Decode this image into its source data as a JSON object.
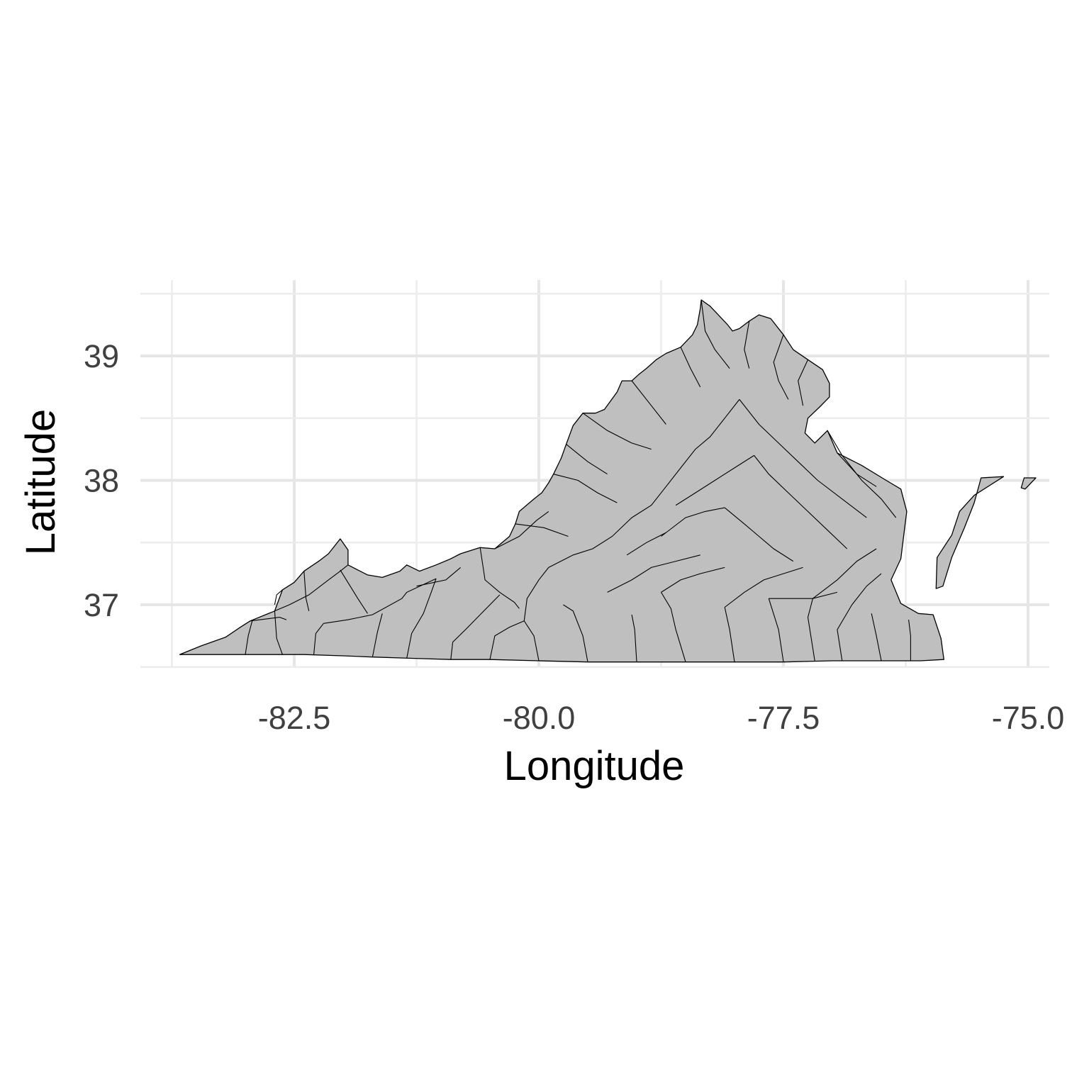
{
  "chart_data": {
    "type": "map",
    "region": "Virginia counties",
    "fill_color": "#bfbfbf",
    "border_color": "#000000",
    "background": "#ffffff",
    "grid": true,
    "xlabel": "Longitude",
    "ylabel": "Latitude",
    "x_ticks": [
      "-82.5",
      "-80.0",
      "-77.5",
      "-75.0"
    ],
    "y_ticks": [
      "37",
      "38",
      "39"
    ],
    "x_tick_values": [
      -82.5,
      -80.0,
      -77.5,
      -75.0
    ],
    "y_tick_values": [
      37,
      38,
      39
    ],
    "xlim": [
      -83.75,
      -74.9
    ],
    "ylim": [
      36.45,
      39.6
    ],
    "outline": [
      [
        -83.67,
        36.6
      ],
      [
        -83.45,
        36.67
      ],
      [
        -83.2,
        36.74
      ],
      [
        -83.05,
        36.82
      ],
      [
        -82.95,
        36.87
      ],
      [
        -82.7,
        36.95
      ],
      [
        -82.62,
        37.12
      ],
      [
        -82.5,
        37.18
      ],
      [
        -82.4,
        37.27
      ],
      [
        -82.25,
        37.35
      ],
      [
        -82.15,
        37.41
      ],
      [
        -82.03,
        37.53
      ],
      [
        -81.95,
        37.44
      ],
      [
        -81.95,
        37.32
      ],
      [
        -81.85,
        37.28
      ],
      [
        -81.75,
        37.24
      ],
      [
        -81.6,
        37.22
      ],
      [
        -81.42,
        37.27
      ],
      [
        -81.35,
        37.32
      ],
      [
        -81.22,
        37.27
      ],
      [
        -81.05,
        37.32
      ],
      [
        -80.9,
        37.37
      ],
      [
        -80.8,
        37.41
      ],
      [
        -80.6,
        37.46
      ],
      [
        -80.45,
        37.45
      ],
      [
        -80.3,
        37.55
      ],
      [
        -80.24,
        37.65
      ],
      [
        -80.2,
        37.75
      ],
      [
        -80.05,
        37.85
      ],
      [
        -79.97,
        37.9
      ],
      [
        -79.9,
        37.98
      ],
      [
        -79.85,
        38.05
      ],
      [
        -79.77,
        38.18
      ],
      [
        -79.72,
        38.29
      ],
      [
        -79.65,
        38.44
      ],
      [
        -79.55,
        38.54
      ],
      [
        -79.42,
        38.54
      ],
      [
        -79.33,
        38.57
      ],
      [
        -79.2,
        38.71
      ],
      [
        -79.15,
        38.8
      ],
      [
        -79.05,
        38.8
      ],
      [
        -78.98,
        38.85
      ],
      [
        -78.9,
        38.9
      ],
      [
        -78.8,
        38.97
      ],
      [
        -78.7,
        39.02
      ],
      [
        -78.55,
        39.07
      ],
      [
        -78.43,
        39.17
      ],
      [
        -78.38,
        39.25
      ],
      [
        -78.35,
        39.38
      ],
      [
        -78.34,
        39.45
      ],
      [
        -78.25,
        39.4
      ],
      [
        -78.07,
        39.25
      ],
      [
        -78.02,
        39.2
      ],
      [
        -77.95,
        39.22
      ],
      [
        -77.85,
        39.28
      ],
      [
        -77.75,
        39.33
      ],
      [
        -77.63,
        39.3
      ],
      [
        -77.5,
        39.17
      ],
      [
        -77.4,
        39.05
      ],
      [
        -77.25,
        38.97
      ],
      [
        -77.1,
        38.89
      ],
      [
        -77.03,
        38.78
      ],
      [
        -77.03,
        38.67
      ],
      [
        -77.13,
        38.59
      ],
      [
        -77.25,
        38.5
      ],
      [
        -77.28,
        38.38
      ],
      [
        -77.18,
        38.3
      ],
      [
        -77.05,
        38.4
      ],
      [
        -76.95,
        38.22
      ],
      [
        -76.7,
        38.12
      ],
      [
        -76.45,
        38.0
      ],
      [
        -76.3,
        37.93
      ],
      [
        -76.24,
        37.75
      ],
      [
        -76.28,
        37.5
      ],
      [
        -76.3,
        37.37
      ],
      [
        -76.4,
        37.2
      ],
      [
        -76.3,
        37.01
      ],
      [
        -76.12,
        36.93
      ],
      [
        -75.97,
        36.92
      ],
      [
        -75.89,
        36.73
      ],
      [
        -75.86,
        36.56
      ],
      [
        -76.1,
        36.55
      ],
      [
        -76.5,
        36.55
      ],
      [
        -77.0,
        36.55
      ],
      [
        -77.5,
        36.54
      ],
      [
        -78.0,
        36.54
      ],
      [
        -78.5,
        36.54
      ],
      [
        -79.0,
        36.54
      ],
      [
        -79.5,
        36.54
      ],
      [
        -80.0,
        36.55
      ],
      [
        -80.5,
        36.56
      ],
      [
        -80.9,
        36.56
      ],
      [
        -81.3,
        36.57
      ],
      [
        -81.7,
        36.58
      ],
      [
        -82.0,
        36.59
      ],
      [
        -82.4,
        36.6
      ],
      [
        -82.9,
        36.6
      ],
      [
        -83.3,
        36.6
      ],
      [
        -83.67,
        36.6
      ]
    ],
    "eastern_shore": [
      [
        -75.25,
        38.03
      ],
      [
        -75.48,
        38.02
      ],
      [
        -75.55,
        37.82
      ],
      [
        -75.65,
        37.62
      ],
      [
        -75.78,
        37.38
      ],
      [
        -75.87,
        37.15
      ],
      [
        -75.94,
        37.13
      ],
      [
        -75.93,
        37.38
      ],
      [
        -75.78,
        37.56
      ],
      [
        -75.7,
        37.75
      ],
      [
        -75.55,
        37.88
      ],
      [
        -75.25,
        38.03
      ]
    ],
    "eastern_shore_tip": [
      [
        -75.04,
        38.02
      ],
      [
        -74.92,
        38.02
      ],
      [
        -75.03,
        37.93
      ],
      [
        -75.07,
        37.94
      ],
      [
        -75.04,
        38.02
      ]
    ],
    "county_lines": [
      [
        [
          -83.0,
          36.6
        ],
        [
          -82.97,
          36.75
        ],
        [
          -82.93,
          36.87
        ]
      ],
      [
        [
          -82.62,
          36.6
        ],
        [
          -82.68,
          36.73
        ],
        [
          -82.7,
          36.95
        ]
      ],
      [
        [
          -82.3,
          36.6
        ],
        [
          -82.28,
          36.77
        ],
        [
          -82.2,
          36.85
        ]
      ],
      [
        [
          -82.95,
          36.87
        ],
        [
          -82.65,
          36.9
        ],
        [
          -82.58,
          36.88
        ]
      ],
      [
        [
          -82.7,
          36.95
        ],
        [
          -82.55,
          37.0
        ],
        [
          -82.35,
          37.08
        ],
        [
          -82.15,
          37.2
        ],
        [
          -82.03,
          37.27
        ],
        [
          -81.95,
          37.32
        ]
      ],
      [
        [
          -82.62,
          37.12
        ],
        [
          -82.68,
          37.08
        ],
        [
          -82.7,
          37.0
        ]
      ],
      [
        [
          -82.4,
          37.27
        ],
        [
          -82.38,
          37.05
        ],
        [
          -82.35,
          36.95
        ]
      ],
      [
        [
          -82.2,
          36.85
        ],
        [
          -81.95,
          36.88
        ],
        [
          -81.7,
          36.92
        ],
        [
          -81.4,
          37.05
        ],
        [
          -81.35,
          37.1
        ],
        [
          -81.05,
          37.21
        ]
      ],
      [
        [
          -82.03,
          37.28
        ],
        [
          -81.85,
          37.05
        ],
        [
          -81.75,
          36.93
        ]
      ],
      [
        [
          -81.7,
          36.58
        ],
        [
          -81.65,
          36.78
        ],
        [
          -81.6,
          36.93
        ]
      ],
      [
        [
          -81.35,
          36.57
        ],
        [
          -81.3,
          36.77
        ],
        [
          -81.18,
          36.93
        ],
        [
          -81.1,
          37.1
        ],
        [
          -81.05,
          37.21
        ]
      ],
      [
        [
          -80.9,
          36.56
        ],
        [
          -80.88,
          36.7
        ],
        [
          -80.75,
          36.8
        ],
        [
          -80.6,
          36.92
        ]
      ],
      [
        [
          -81.25,
          37.15
        ],
        [
          -80.95,
          37.2
        ],
        [
          -80.8,
          37.3
        ]
      ],
      [
        [
          -80.6,
          37.46
        ],
        [
          -80.55,
          37.2
        ],
        [
          -80.4,
          37.1
        ],
        [
          -80.25,
          37.02
        ],
        [
          -80.2,
          36.97
        ]
      ],
      [
        [
          -80.6,
          36.92
        ],
        [
          -80.4,
          37.08
        ]
      ],
      [
        [
          -80.5,
          36.56
        ],
        [
          -80.45,
          36.75
        ],
        [
          -80.3,
          36.82
        ],
        [
          -80.15,
          36.87
        ]
      ],
      [
        [
          -80.0,
          36.55
        ],
        [
          -80.05,
          36.75
        ],
        [
          -80.15,
          36.87
        ],
        [
          -80.12,
          37.05
        ],
        [
          -80.0,
          37.2
        ],
        [
          -79.9,
          37.3
        ]
      ],
      [
        [
          -79.5,
          36.54
        ],
        [
          -79.55,
          36.75
        ],
        [
          -79.65,
          36.95
        ],
        [
          -79.75,
          37.0
        ]
      ],
      [
        [
          -79.0,
          36.54
        ],
        [
          -79.02,
          36.8
        ],
        [
          -79.05,
          36.92
        ]
      ],
      [
        [
          -78.5,
          36.54
        ],
        [
          -78.6,
          36.8
        ],
        [
          -78.65,
          36.97
        ],
        [
          -78.75,
          37.1
        ]
      ],
      [
        [
          -78.0,
          36.54
        ],
        [
          -78.05,
          36.8
        ],
        [
          -78.1,
          36.98
        ]
      ],
      [
        [
          -77.5,
          36.54
        ],
        [
          -77.55,
          36.8
        ],
        [
          -77.65,
          37.05
        ]
      ],
      [
        [
          -77.18,
          36.55
        ],
        [
          -77.25,
          36.9
        ],
        [
          -77.2,
          37.05
        ]
      ],
      [
        [
          -76.9,
          36.55
        ],
        [
          -76.95,
          36.8
        ],
        [
          -76.8,
          37.0
        ]
      ],
      [
        [
          -76.5,
          36.55
        ],
        [
          -76.55,
          36.75
        ],
        [
          -76.6,
          36.93
        ]
      ],
      [
        [
          -76.2,
          36.55
        ],
        [
          -76.2,
          36.75
        ],
        [
          -76.22,
          36.88
        ]
      ],
      [
        [
          -79.9,
          37.3
        ],
        [
          -79.65,
          37.4
        ],
        [
          -79.45,
          37.45
        ],
        [
          -79.25,
          37.55
        ],
        [
          -79.05,
          37.7
        ],
        [
          -78.85,
          37.8
        ],
        [
          -78.7,
          37.95
        ],
        [
          -78.55,
          38.1
        ],
        [
          -78.4,
          38.25
        ],
        [
          -78.25,
          38.35
        ],
        [
          -78.1,
          38.5
        ],
        [
          -77.95,
          38.65
        ]
      ],
      [
        [
          -80.45,
          37.45
        ],
        [
          -80.2,
          37.55
        ],
        [
          -80.02,
          37.68
        ],
        [
          -79.9,
          37.75
        ]
      ],
      [
        [
          -80.24,
          37.65
        ],
        [
          -79.95,
          37.62
        ],
        [
          -79.7,
          37.55
        ]
      ],
      [
        [
          -79.85,
          38.05
        ],
        [
          -79.6,
          38.0
        ],
        [
          -79.4,
          37.9
        ],
        [
          -79.2,
          37.82
        ]
      ],
      [
        [
          -79.72,
          38.29
        ],
        [
          -79.5,
          38.15
        ],
        [
          -79.3,
          38.05
        ]
      ],
      [
        [
          -79.55,
          38.54
        ],
        [
          -79.3,
          38.4
        ],
        [
          -79.05,
          38.3
        ],
        [
          -78.85,
          38.25
        ]
      ],
      [
        [
          -79.05,
          38.8
        ],
        [
          -78.85,
          38.6
        ],
        [
          -78.7,
          38.45
        ]
      ],
      [
        [
          -78.55,
          39.07
        ],
        [
          -78.45,
          38.9
        ],
        [
          -78.35,
          38.75
        ]
      ],
      [
        [
          -78.34,
          39.45
        ],
        [
          -78.3,
          39.2
        ],
        [
          -78.2,
          39.05
        ],
        [
          -78.05,
          38.9
        ]
      ],
      [
        [
          -77.85,
          39.28
        ],
        [
          -77.9,
          39.05
        ],
        [
          -77.85,
          38.9
        ]
      ],
      [
        [
          -77.5,
          39.17
        ],
        [
          -77.6,
          38.95
        ],
        [
          -77.55,
          38.8
        ],
        [
          -77.45,
          38.65
        ]
      ],
      [
        [
          -77.25,
          38.97
        ],
        [
          -77.35,
          38.8
        ],
        [
          -77.3,
          38.6
        ]
      ],
      [
        [
          -78.6,
          37.8
        ],
        [
          -78.4,
          37.9
        ],
        [
          -78.2,
          38.0
        ],
        [
          -78.0,
          38.1
        ],
        [
          -77.8,
          38.2
        ]
      ],
      [
        [
          -78.75,
          37.55
        ],
        [
          -78.5,
          37.7
        ],
        [
          -78.3,
          37.75
        ],
        [
          -78.1,
          37.78
        ]
      ],
      [
        [
          -79.1,
          37.4
        ],
        [
          -78.9,
          37.5
        ],
        [
          -78.7,
          37.58
        ]
      ],
      [
        [
          -79.3,
          37.1
        ],
        [
          -79.05,
          37.2
        ],
        [
          -78.85,
          37.3
        ],
        [
          -78.6,
          37.35
        ],
        [
          -78.35,
          37.4
        ]
      ],
      [
        [
          -78.75,
          37.1
        ],
        [
          -78.55,
          37.2
        ],
        [
          -78.35,
          37.25
        ],
        [
          -78.1,
          37.3
        ]
      ],
      [
        [
          -78.1,
          36.98
        ],
        [
          -77.9,
          37.1
        ],
        [
          -77.7,
          37.2
        ],
        [
          -77.5,
          37.25
        ],
        [
          -77.3,
          37.3
        ]
      ],
      [
        [
          -77.65,
          37.05
        ],
        [
          -77.45,
          37.05
        ],
        [
          -77.2,
          37.05
        ],
        [
          -76.95,
          37.1
        ]
      ],
      [
        [
          -78.1,
          37.78
        ],
        [
          -77.9,
          37.65
        ],
        [
          -77.75,
          37.55
        ],
        [
          -77.6,
          37.45
        ],
        [
          -77.4,
          37.35
        ]
      ],
      [
        [
          -77.8,
          38.2
        ],
        [
          -77.65,
          38.05
        ],
        [
          -77.45,
          37.9
        ],
        [
          -77.25,
          37.75
        ],
        [
          -77.05,
          37.6
        ],
        [
          -76.85,
          37.45
        ]
      ],
      [
        [
          -77.95,
          38.65
        ],
        [
          -77.75,
          38.45
        ],
        [
          -77.55,
          38.3
        ],
        [
          -77.35,
          38.15
        ],
        [
          -77.15,
          38.0
        ],
        [
          -76.9,
          37.85
        ],
        [
          -76.65,
          37.7
        ]
      ],
      [
        [
          -77.05,
          38.4
        ],
        [
          -76.9,
          38.2
        ],
        [
          -76.7,
          38.0
        ],
        [
          -76.5,
          37.85
        ],
        [
          -76.35,
          37.7
        ]
      ],
      [
        [
          -76.95,
          38.22
        ],
        [
          -76.75,
          38.05
        ],
        [
          -76.55,
          37.95
        ]
      ],
      [
        [
          -76.8,
          37.0
        ],
        [
          -76.65,
          37.15
        ],
        [
          -76.5,
          37.25
        ]
      ],
      [
        [
          -77.2,
          37.05
        ],
        [
          -76.95,
          37.2
        ],
        [
          -76.75,
          37.35
        ],
        [
          -76.55,
          37.45
        ]
      ]
    ]
  }
}
